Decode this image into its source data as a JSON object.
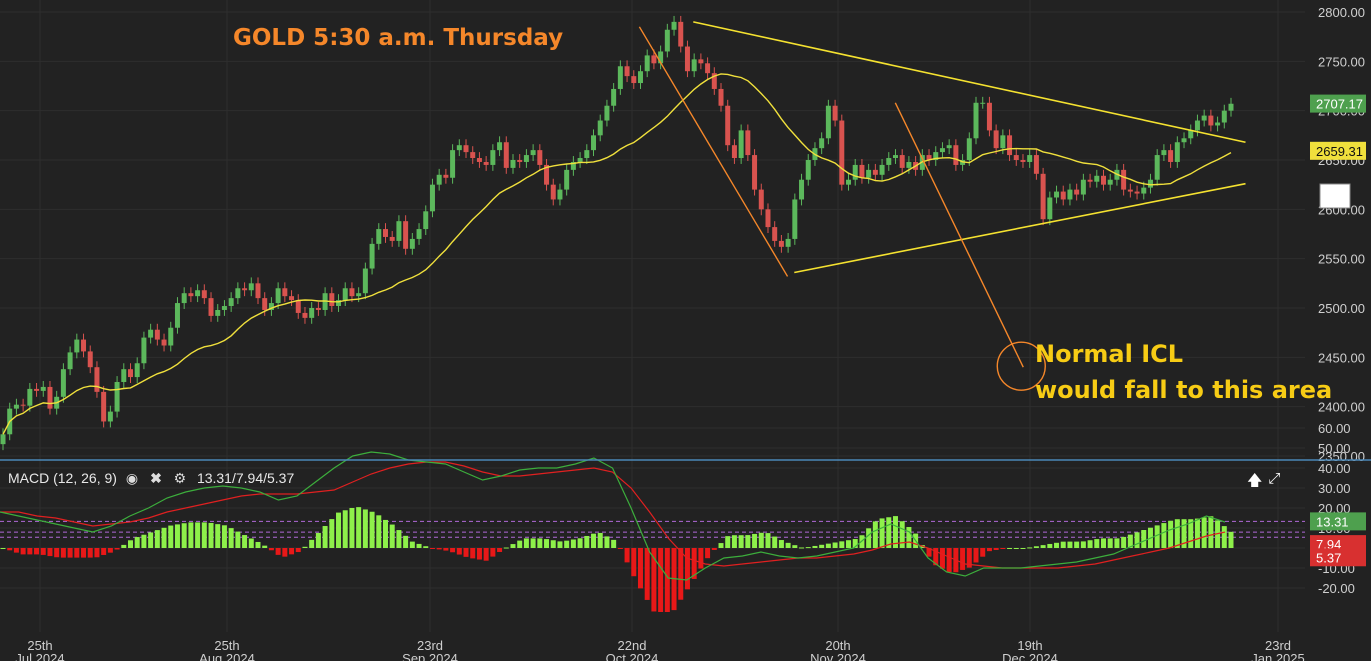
{
  "annotations": {
    "title": "GOLD 5:30 a.m. Thursday",
    "note_line1": "Normal ICL",
    "note_line2": "would fall to this area"
  },
  "macd_panel": {
    "label": "MACD (12, 26, 9)",
    "values_text": "13.31/7.94/5.37",
    "icons": [
      "eye-icon",
      "close-icon",
      "gear-icon"
    ],
    "right_icons": [
      "arrow-up-icon",
      "expand-icon"
    ]
  },
  "price_badges": {
    "last_price": "2707.17",
    "ma_value": "2659.31"
  },
  "macd_badges": {
    "macd": "13.31",
    "signal": "7.94",
    "histogram": "5.37"
  },
  "colors": {
    "background": "#222222",
    "up_candle": "#5cb85c",
    "down_candle": "#d9534f",
    "moving_average": "#f0e03c",
    "trendlines": "#f5e230",
    "icl_lines": "#f5872a",
    "macd_line": "#3cae3c",
    "signal_line": "#e02020",
    "hist_positive": "#8ef04a",
    "hist_negative": "#e81818"
  },
  "chart_data": {
    "type": "candlestick",
    "title": "GOLD 5:30 a.m. Thursday",
    "price_axis": {
      "ylim": [
        2350,
        2800
      ],
      "ticks": [
        "2800.00",
        "2750.00",
        "2700.00",
        "2650.00",
        "2600.00",
        "2550.00",
        "2500.00",
        "2450.00",
        "2400.00",
        "2350.00"
      ]
    },
    "x_axis": {
      "labels": [
        {
          "day": "25th",
          "month": "Jul 2024"
        },
        {
          "day": "25th",
          "month": "Aug 2024"
        },
        {
          "day": "23rd",
          "month": "Sep 2024"
        },
        {
          "day": "22nd",
          "month": "Oct 2024"
        },
        {
          "day": "20th",
          "month": "Nov 2024"
        },
        {
          "day": "19th",
          "month": "Dec 2024"
        },
        {
          "day": "23rd",
          "month": "Jan 2025"
        }
      ]
    },
    "candles_close": [
      2372,
      2398,
      2402,
      2401,
      2418,
      2416,
      2420,
      2398,
      2410,
      2438,
      2455,
      2468,
      2456,
      2440,
      2415,
      2385,
      2395,
      2425,
      2438,
      2430,
      2444,
      2470,
      2478,
      2468,
      2462,
      2480,
      2505,
      2515,
      2512,
      2518,
      2510,
      2492,
      2498,
      2502,
      2510,
      2520,
      2518,
      2525,
      2510,
      2498,
      2505,
      2520,
      2512,
      2508,
      2495,
      2490,
      2500,
      2498,
      2515,
      2502,
      2508,
      2520,
      2512,
      2515,
      2540,
      2565,
      2580,
      2572,
      2568,
      2588,
      2560,
      2570,
      2580,
      2598,
      2625,
      2635,
      2632,
      2660,
      2665,
      2658,
      2652,
      2648,
      2645,
      2660,
      2668,
      2642,
      2650,
      2648,
      2655,
      2660,
      2645,
      2625,
      2610,
      2620,
      2640,
      2648,
      2652,
      2660,
      2675,
      2690,
      2705,
      2722,
      2745,
      2735,
      2728,
      2740,
      2756,
      2748,
      2760,
      2782,
      2790,
      2765,
      2740,
      2752,
      2748,
      2738,
      2722,
      2705,
      2665,
      2652,
      2680,
      2655,
      2620,
      2600,
      2582,
      2568,
      2562,
      2570,
      2610,
      2630,
      2650,
      2662,
      2672,
      2705,
      2690,
      2625,
      2630,
      2645,
      2632,
      2640,
      2635,
      2645,
      2652,
      2655,
      2642,
      2648,
      2640,
      2655,
      2650,
      2658,
      2662,
      2665,
      2645,
      2650,
      2672,
      2708,
      2708,
      2680,
      2662,
      2675,
      2655,
      2650,
      2648,
      2655,
      2636,
      2590,
      2612,
      2618,
      2610,
      2620,
      2615,
      2630,
      2628,
      2634,
      2625,
      2630,
      2640,
      2620,
      2618,
      2616,
      2622,
      2630,
      2655,
      2660,
      2648,
      2668,
      2672,
      2680,
      2690,
      2695,
      2685,
      2688,
      2700,
      2707
    ],
    "moving_average": {
      "last": 2659.31
    },
    "trendlines": [
      {
        "name": "upper",
        "from": [
          "2024-10-30",
          2790
        ],
        "to": [
          "2025-01-20",
          2668
        ]
      },
      {
        "name": "lower",
        "from": [
          "2024-11-14",
          2536
        ],
        "to": [
          "2025-01-20",
          2626
        ]
      }
    ],
    "icl_lines": [
      {
        "from": [
          "2024-10-22",
          2785
        ],
        "to": [
          "2024-11-13",
          2532
        ]
      },
      {
        "from": [
          "2024-11-29",
          2708
        ],
        "to": [
          "2024-12-18",
          2440
        ]
      }
    ],
    "macd": {
      "params": [
        12,
        26,
        9
      ],
      "macd": 13.31,
      "signal": 7.94,
      "histogram": 5.37,
      "ticks": [
        "60.00",
        "50.00",
        "40.00",
        "30.00",
        "20.00",
        "10.00",
        "0.00",
        "-10.00",
        "-20.00"
      ],
      "ylim": [
        -25,
        62
      ],
      "macd_series": [
        18,
        16,
        14,
        12,
        10,
        8,
        11,
        16,
        20,
        25,
        28,
        30,
        31,
        30,
        28,
        24,
        26,
        33,
        40,
        46,
        48,
        47,
        44,
        43,
        42,
        38,
        34,
        36,
        39,
        40,
        40,
        42,
        45,
        40,
        20,
        -2,
        -15,
        -16,
        -10,
        -5,
        -4,
        -2,
        -4,
        -5,
        -4,
        -2,
        0,
        8,
        12,
        8,
        -5,
        -12,
        -14,
        -10,
        -10,
        -10,
        -9,
        -8,
        -7,
        -5,
        -3,
        1,
        5,
        9,
        12,
        16,
        13
      ],
      "signal_series": [
        18,
        18,
        16,
        15,
        13,
        11,
        12,
        13,
        15,
        18,
        20,
        22,
        24,
        26,
        27,
        27,
        27,
        28,
        29,
        33,
        37,
        40,
        42,
        43,
        43,
        41,
        38,
        36,
        36,
        37,
        38,
        39,
        40,
        38,
        30,
        18,
        5,
        -5,
        -8,
        -9,
        -8,
        -7,
        -6,
        -5,
        -5,
        -4,
        -3,
        -1,
        2,
        3,
        0,
        -4,
        -8,
        -9,
        -10,
        -10,
        -10,
        -10,
        -9,
        -8,
        -6,
        -4,
        -2,
        0,
        3,
        6,
        7.94
      ]
    }
  }
}
